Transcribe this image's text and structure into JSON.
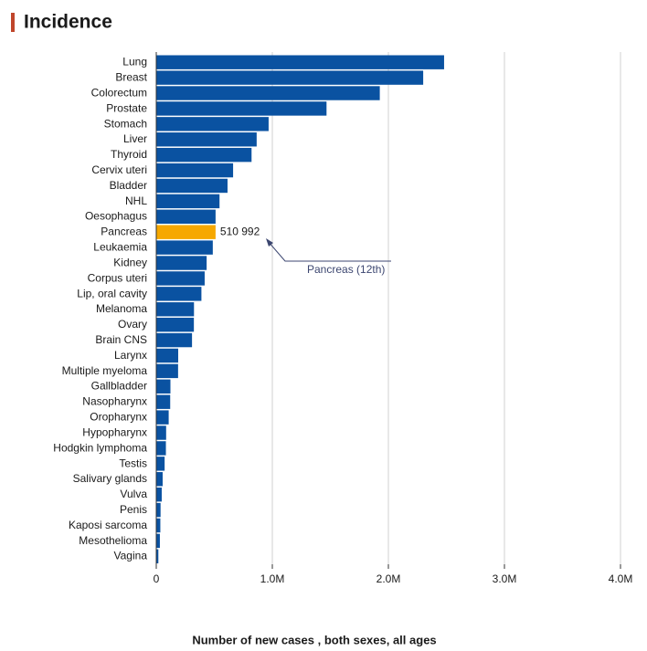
{
  "chart_data": {
    "type": "hbar",
    "title": "Incidence",
    "x_label": "Number of new cases , both sexes, all ages",
    "categories": [
      "Lung",
      "Breast",
      "Colorectum",
      "Prostate",
      "Stomach",
      "Liver",
      "Thyroid",
      "Cervix uteri",
      "Bladder",
      "NHL",
      "Oesophagus",
      "Pancreas",
      "Leukaemia",
      "Kidney",
      "Corpus uteri",
      "Lip, oral cavity",
      "Melanoma",
      "Ovary",
      "Brain CNS",
      "Larynx",
      "Multiple myeloma",
      "Gallbladder",
      "Nasopharynx",
      "Oropharynx",
      "Hypopharynx",
      "Hodgkin lymphoma",
      "Testis",
      "Salivary glands",
      "Vulva",
      "Penis",
      "Kaposi sarcoma",
      "Mesothelioma",
      "Vagina"
    ],
    "values": [
      2480000,
      2300000,
      1926000,
      1467000,
      968000,
      865000,
      821000,
      662000,
      614000,
      545000,
      511000,
      510992,
      487000,
      434000,
      417000,
      389000,
      325000,
      324000,
      308000,
      189000,
      188000,
      122000,
      120000,
      107000,
      85000,
      83000,
      72000,
      55000,
      47000,
      37000,
      35000,
      31000,
      18000
    ],
    "value_labels": [
      null,
      null,
      null,
      null,
      null,
      null,
      null,
      null,
      null,
      null,
      null,
      "510 992",
      null,
      null,
      null,
      null,
      null,
      null,
      null,
      null,
      null,
      null,
      null,
      null,
      null,
      null,
      null,
      null,
      null,
      null,
      null,
      null,
      null
    ],
    "color": "#0a52a1",
    "highlight_index": 11,
    "highlight_color": "#f6a800",
    "annotation": "Pancreas (12th)",
    "xlim": [
      0,
      4000000
    ],
    "xticks": [
      0,
      {
        "value": 1000000,
        "label": "1.0M"
      },
      {
        "value": 2000000,
        "label": "2.0M"
      },
      {
        "value": 3000000,
        "label": "3.0M"
      },
      {
        "value": 4000000,
        "label": "4.0M"
      }
    ],
    "grid": true
  }
}
